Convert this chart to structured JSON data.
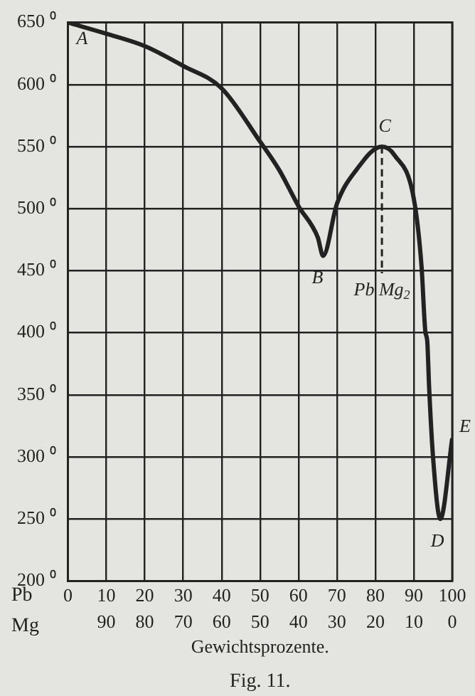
{
  "chart_data": {
    "type": "line",
    "xlabel": "Gewichtsprozente.",
    "annotations": [
      "Pb",
      "Mg",
      "Fig. 11.",
      {
        "text": "A",
        "x": 0,
        "y": 650
      },
      {
        "text": "B",
        "x": 66.4,
        "y": 462
      },
      {
        "text": "C",
        "x": 81.7,
        "y": 550
      },
      {
        "text": "Pb Mg$_{2}$",
        "x": 81.7,
        "y": 448
      },
      {
        "text": "D",
        "x": 96.9,
        "y": 250
      },
      {
        "text": "E",
        "x": 100,
        "y": 315
      }
    ],
    "xlim": [
      0,
      100
    ],
    "xticks": [
      0,
      10,
      20,
      30,
      40,
      50,
      60,
      70,
      80,
      90,
      100
    ],
    "x2lim": [
      100,
      0
    ],
    "x2ticks": [
      90,
      80,
      70,
      60,
      50,
      40,
      30,
      20,
      10,
      0
    ],
    "ylim": [
      200,
      650
    ],
    "yticks": [
      {
        "value": 200,
        "label": "200 ⁰"
      },
      {
        "value": 250,
        "label": "250 ⁰"
      },
      {
        "value": 300,
        "label": "300 ⁰"
      },
      {
        "value": 350,
        "label": "350 ⁰"
      },
      {
        "value": 400,
        "label": "400 ⁰"
      },
      {
        "value": 450,
        "label": "450 ⁰"
      },
      {
        "value": 500,
        "label": "500 ⁰"
      },
      {
        "value": 550,
        "label": "550 ⁰"
      },
      {
        "value": 600,
        "label": "600 ⁰"
      },
      {
        "value": 650,
        "label": "650 ⁰"
      }
    ],
    "grid": true,
    "marker": "none",
    "series": [
      {
        "color": "#222222",
        "line_style": "solid",
        "x": [
          0,
          10,
          20,
          30,
          40,
          50,
          55,
          60,
          65,
          66.4,
          70,
          75,
          81.7,
          85,
          90,
          92,
          93,
          93.5,
          94,
          95,
          96.9,
          100
        ],
        "values": [
          650,
          641,
          631,
          615,
          597,
          554,
          531,
          502,
          477,
          462,
          504,
          531,
          550,
          543,
          508,
          454,
          401,
          393,
          355,
          300,
          250,
          315
        ]
      },
      {
        "color": "#222222",
        "line_style": "dashed",
        "x": [
          81.7,
          81.7
        ],
        "values": [
          550,
          448
        ]
      }
    ]
  }
}
